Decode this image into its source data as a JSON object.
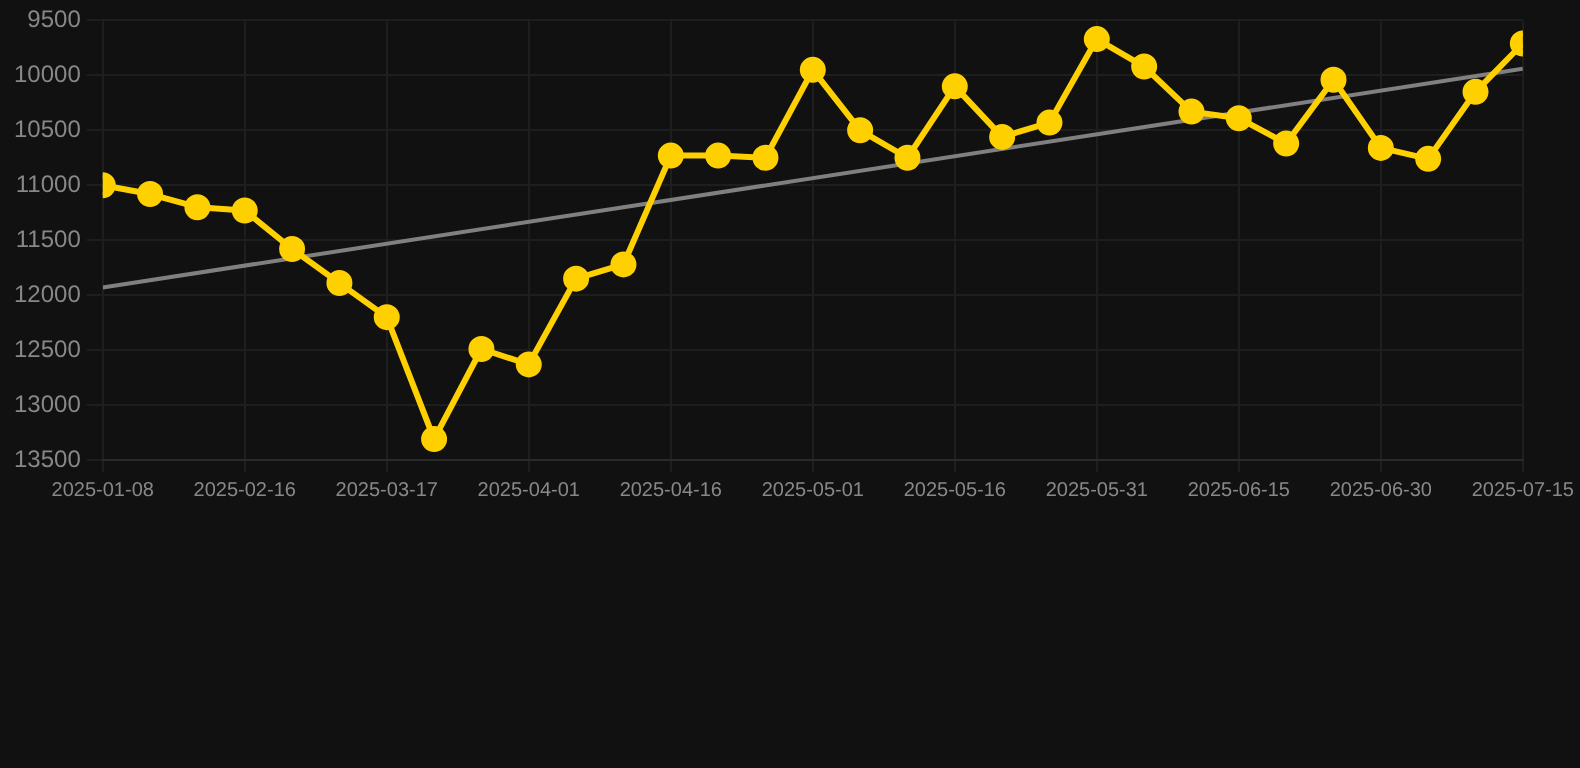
{
  "chart_data": {
    "type": "line",
    "categories": [
      "2025-01-08",
      null,
      null,
      "2025-02-16",
      null,
      null,
      "2025-03-17",
      null,
      null,
      "2025-04-01",
      null,
      null,
      "2025-04-16",
      null,
      null,
      "2025-05-01",
      null,
      null,
      "2025-05-16",
      null,
      null,
      "2025-05-31",
      null,
      null,
      "2025-06-15",
      null,
      null,
      "2025-06-30",
      null,
      null,
      "2025-07-15"
    ],
    "series": [
      {
        "color": "#ffd000",
        "values": [
          11000,
          11080,
          11200,
          11230,
          11580,
          11890,
          12200,
          13310,
          12490,
          12630,
          11850,
          11720,
          10730,
          10730,
          10750,
          9950,
          10500,
          10750,
          10100,
          10560,
          10430,
          9670,
          9920,
          10330,
          10390,
          10620,
          10040,
          10660,
          10760,
          10150,
          9710
        ],
        "marker": "circle"
      },
      {
        "type": "line",
        "color": "#808080",
        "values": [
          11930,
          null,
          null,
          null,
          null,
          null,
          null,
          null,
          null,
          null,
          null,
          null,
          null,
          null,
          null,
          null,
          null,
          null,
          null,
          null,
          null,
          null,
          null,
          null,
          null,
          null,
          null,
          null,
          null,
          null,
          9940
        ],
        "marker": "none"
      }
    ],
    "ylim": [
      13500,
      9500
    ],
    "yticks": [
      9500,
      10000,
      10500,
      11000,
      11500,
      12000,
      12500,
      13000,
      13500
    ],
    "grid": true,
    "legend": false,
    "line_style": "solid"
  }
}
